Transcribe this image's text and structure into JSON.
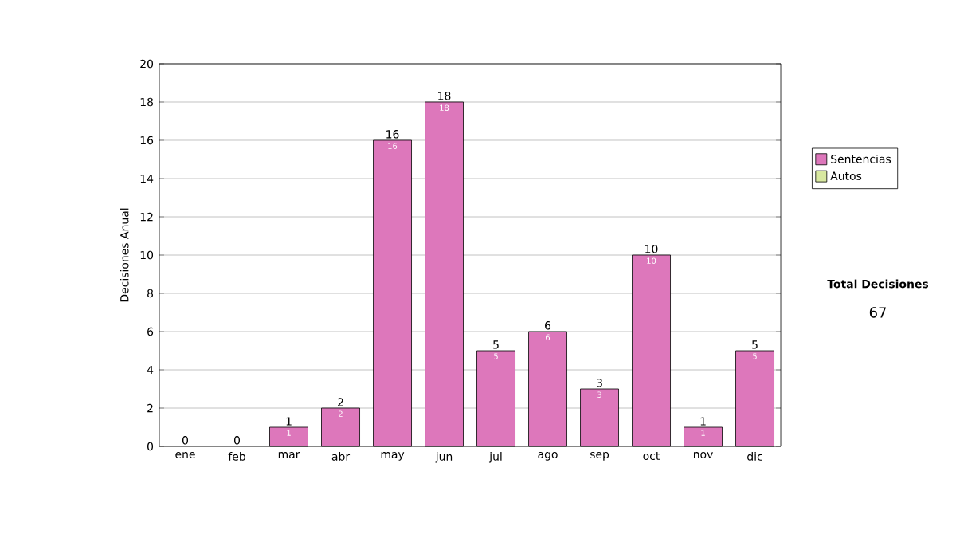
{
  "chart_data": {
    "type": "bar",
    "ylabel": "Decisiones Anual",
    "categories": [
      "ene",
      "feb",
      "mar",
      "abr",
      "may",
      "jun",
      "jul",
      "ago",
      "sep",
      "oct",
      "nov",
      "dic"
    ],
    "series": [
      {
        "name": "Sentencias",
        "color": "#dd77bb",
        "values": [
          0,
          0,
          1,
          2,
          16,
          18,
          5,
          6,
          3,
          10,
          1,
          5
        ],
        "value_labels": [
          null,
          null,
          "1",
          "2",
          "16",
          "18",
          "5",
          "6",
          "3",
          "10",
          "1",
          "5"
        ]
      },
      {
        "name": "Autos",
        "color": "#d8e8a0",
        "values": [
          0,
          0,
          0,
          0,
          0,
          0,
          0,
          0,
          0,
          0,
          0,
          0
        ]
      }
    ],
    "stacked": true,
    "ylim": [
      0,
      20
    ],
    "yticks": [
      0,
      2,
      4,
      6,
      8,
      10,
      12,
      14,
      16,
      18,
      20
    ],
    "grid": "y",
    "legend": "right",
    "totals": [
      "0",
      "0",
      "1",
      "2",
      "16",
      "18",
      "5",
      "6",
      "3",
      "10",
      "1",
      "5"
    ],
    "annotations": [
      "Total Decisiones",
      "67"
    ]
  }
}
